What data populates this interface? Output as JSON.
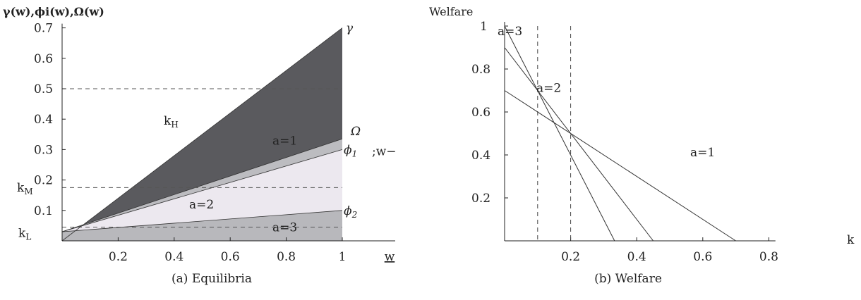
{
  "charts": [
    {
      "id": "a",
      "caption": "(a) Equilibria",
      "chart_data": {
        "type": "area",
        "ylabel": "γ(w),ϕi(w),Ω(w)",
        "xlabel": "w",
        "xlim": [
          0,
          1.2
        ],
        "ylim": [
          0,
          0.7
        ],
        "x_ticks": [
          0.2,
          0.4,
          0.6,
          0.8,
          1
        ],
        "y_ticks": [
          0.1,
          0.2,
          0.3,
          0.4,
          0.5,
          0.6,
          0.7
        ],
        "curves": [
          {
            "name": "γ",
            "x": [
              0,
              1
            ],
            "y": [
              0,
              0.7
            ]
          },
          {
            "name": "Ω",
            "x": [
              0,
              1
            ],
            "y": [
              0.03,
              0.335
            ]
          },
          {
            "name": "ϕ1",
            "x": [
              0,
              1
            ],
            "y": [
              0.03,
              0.3
            ]
          },
          {
            "name": "ϕ2",
            "x": [
              0,
              1
            ],
            "y": [
              0.03,
              0.1
            ]
          }
        ],
        "regions": [
          {
            "label": "a=1",
            "color": "#5a5a5e"
          },
          {
            "label": "a=2",
            "color": "#ece8ef"
          },
          {
            "label": "a=3",
            "color": "#b8b8bc"
          }
        ],
        "thresholds": [
          {
            "name": "kH",
            "value": 0.5
          },
          {
            "name": "kM",
            "value": 0.175
          },
          {
            "name": "kL",
            "value": 0.045
          }
        ],
        "side_label": ";w−γ",
        "grid": false
      }
    },
    {
      "id": "b",
      "caption": "(b) Welfare",
      "chart_data": {
        "type": "line",
        "ylabel": "Welfare",
        "xlabel": "k",
        "xlim": [
          0,
          0.82
        ],
        "ylim": [
          0,
          1
        ],
        "x_ticks": [
          0.2,
          0.4,
          0.6,
          0.8
        ],
        "y_ticks": [
          0.2,
          0.4,
          0.6,
          0.8,
          1
        ],
        "series": [
          {
            "name": "a=3",
            "x": [
              0,
              0.333
            ],
            "y": [
              1.0,
              0
            ]
          },
          {
            "name": "a=2",
            "x": [
              0,
              0.45
            ],
            "y": [
              0.9,
              0
            ]
          },
          {
            "name": "a=1",
            "x": [
              0,
              0.7
            ],
            "y": [
              0.7,
              0
            ]
          }
        ],
        "vlines": [
          0.1,
          0.2
        ],
        "grid": false
      }
    }
  ]
}
